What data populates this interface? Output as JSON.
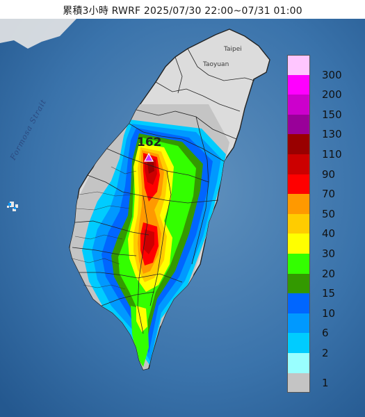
{
  "title": "累積3小時 RWRF 2025/07/30 22:00~07/31 01:00",
  "sea_label": "Formosa Strait",
  "places": {
    "taipei": "Taipei",
    "taoyuan": "Taoyuan"
  },
  "max_marker": {
    "value": "162",
    "symbol": "triangle"
  },
  "legend": [
    {
      "label": "300",
      "color": "#ffc6ff"
    },
    {
      "label": "200",
      "color": "#ff00ff"
    },
    {
      "label": "150",
      "color": "#cc00cc"
    },
    {
      "label": "130",
      "color": "#990099"
    },
    {
      "label": "110",
      "color": "#990000"
    },
    {
      "label": "90",
      "color": "#cc0000"
    },
    {
      "label": "70",
      "color": "#ff0000"
    },
    {
      "label": "50",
      "color": "#ff9900"
    },
    {
      "label": "40",
      "color": "#ffcc00"
    },
    {
      "label": "30",
      "color": "#ffff00"
    },
    {
      "label": "20",
      "color": "#33ff00"
    },
    {
      "label": "15",
      "color": "#339900"
    },
    {
      "label": "10",
      "color": "#0066ff"
    },
    {
      "label": "6",
      "color": "#0099ff"
    },
    {
      "label": "2",
      "color": "#00ccff"
    },
    {
      "label": "1",
      "color": "#99ffff"
    },
    {
      "label": "",
      "color": "#c4c4c4"
    }
  ],
  "colors": {
    "sea": "#2f6fa8",
    "land": "#dcdcdc",
    "boundary": "#222222"
  }
}
